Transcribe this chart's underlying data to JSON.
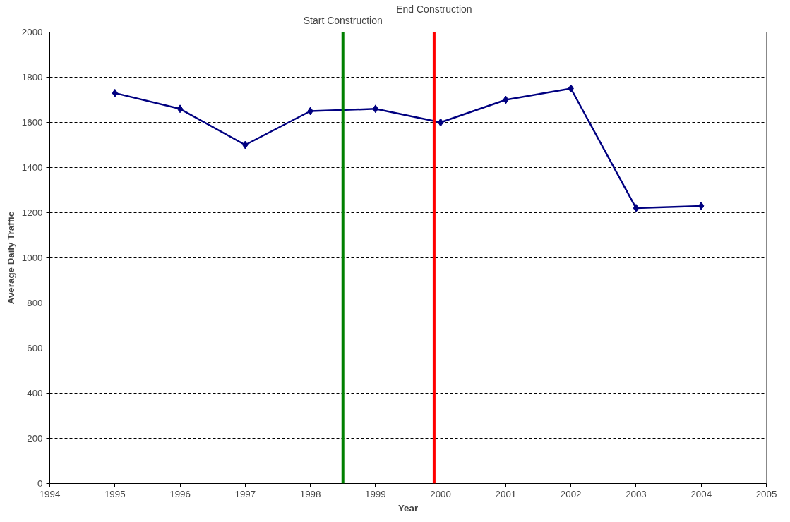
{
  "chart_data": {
    "type": "line",
    "xlabel": "Year",
    "ylabel": "Average Daily Traffic",
    "x": [
      1995,
      1996,
      1997,
      1998,
      1999,
      2000,
      2001,
      2002,
      2003,
      2004
    ],
    "series": [
      {
        "color": "#000080",
        "values": [
          1730,
          1660,
          1500,
          1650,
          1660,
          1600,
          1700,
          1750,
          1220,
          1230
        ]
      }
    ],
    "xlim": [
      1994,
      2005
    ],
    "xticks": [
      1994,
      1995,
      1996,
      1997,
      1998,
      1999,
      2000,
      2001,
      2002,
      2003,
      2004,
      2005
    ],
    "ylim": [
      0,
      2000
    ],
    "yticks": [
      0,
      200,
      400,
      600,
      800,
      1000,
      1200,
      1400,
      1600,
      1800,
      2000
    ],
    "grid": "y",
    "marker": "diamond",
    "line_style": "solid",
    "ref_lines": [
      {
        "axis": "x",
        "value": 1998.5,
        "label": "Start Construction",
        "color": "#008000"
      },
      {
        "axis": "x",
        "value": 1999.9,
        "label": "End Construction",
        "color": "#ff0000"
      }
    ]
  }
}
